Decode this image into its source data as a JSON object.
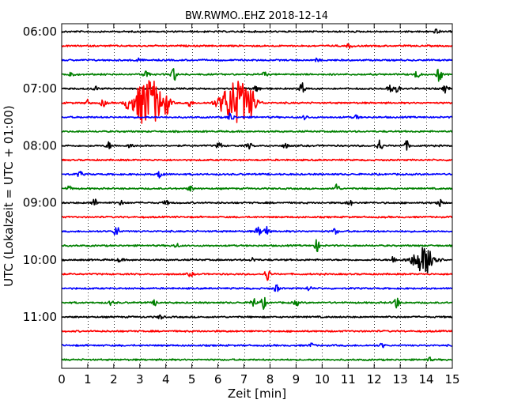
{
  "chart_data": {
    "type": "line",
    "title": "BW.RWMO..EHZ 2018-12-14",
    "xlabel": "Zeit  [min]",
    "ylabel": "UTC (Lokalzeit = UTC + 01:00)",
    "xlim": [
      0,
      15
    ],
    "x_ticks": [
      0,
      1,
      2,
      3,
      4,
      5,
      6,
      7,
      8,
      9,
      10,
      11,
      12,
      13,
      14,
      15
    ],
    "x_tick_labels": [
      "0",
      "1",
      "2",
      "3",
      "4",
      "5",
      "6",
      "7",
      "8",
      "9",
      "10",
      "11",
      "12",
      "13",
      "14",
      "15"
    ],
    "y_tick_labels": [
      "06:00",
      "07:00",
      "08:00",
      "09:00",
      "10:00",
      "11:00"
    ],
    "vertical_grid": true,
    "grid_style": "dotted",
    "trace_colors": [
      "#000000",
      "#ff0000",
      "#0000ff",
      "#008000"
    ],
    "traces": [
      {
        "start": "06:00",
        "events": [
          {
            "t": 14.4,
            "a": 0.35
          }
        ]
      },
      {
        "start": "06:15",
        "events": [
          {
            "t": 11.05,
            "a": 0.3
          }
        ]
      },
      {
        "start": "06:30",
        "events": [
          {
            "t": 2.9,
            "a": 0.3
          },
          {
            "t": 9.8,
            "a": 0.2
          }
        ]
      },
      {
        "start": "06:45",
        "events": [
          {
            "t": 0.35,
            "a": 0.5
          },
          {
            "t": 3.25,
            "a": 0.6
          },
          {
            "t": 4.3,
            "a": 1.0
          },
          {
            "t": 7.8,
            "a": 0.3
          },
          {
            "t": 13.65,
            "a": 0.6
          },
          {
            "t": 14.5,
            "a": 1.0
          }
        ]
      },
      {
        "start": "07:00",
        "events": [
          {
            "t": 1.3,
            "a": 0.3
          },
          {
            "t": 7.5,
            "a": 0.6
          },
          {
            "t": 9.25,
            "a": 1.0
          },
          {
            "t": 12.6,
            "a": 0.8
          },
          {
            "t": 12.9,
            "a": 0.5
          },
          {
            "t": 14.75,
            "a": 0.6
          }
        ]
      },
      {
        "start": "07:15",
        "events": [
          {
            "t": 1.0,
            "a": 0.4
          },
          {
            "t": 1.6,
            "a": 0.5
          },
          {
            "t": 2.5,
            "a": 0.6
          },
          {
            "t": 3.15,
            "a": 2.4
          },
          {
            "t": 3.55,
            "a": 2.0
          },
          {
            "t": 4.05,
            "a": 1.2
          },
          {
            "t": 4.9,
            "a": 0.6
          },
          {
            "t": 6.45,
            "a": 2.0
          },
          {
            "t": 6.95,
            "a": 2.3
          },
          {
            "t": 7.35,
            "a": 1.0
          }
        ]
      },
      {
        "start": "07:30",
        "events": [
          {
            "t": 6.5,
            "a": 0.7
          },
          {
            "t": 9.35,
            "a": 0.3
          },
          {
            "t": 11.3,
            "a": 0.3
          }
        ]
      },
      {
        "start": "07:45",
        "events": []
      },
      {
        "start": "08:00",
        "events": [
          {
            "t": 1.8,
            "a": 0.5
          },
          {
            "t": 2.65,
            "a": 0.4
          },
          {
            "t": 6.05,
            "a": 0.5
          },
          {
            "t": 7.2,
            "a": 0.4
          },
          {
            "t": 8.6,
            "a": 0.3
          },
          {
            "t": 12.2,
            "a": 0.9
          },
          {
            "t": 13.25,
            "a": 0.6
          }
        ]
      },
      {
        "start": "08:15",
        "events": []
      },
      {
        "start": "08:30",
        "events": [
          {
            "t": 0.7,
            "a": 0.4
          },
          {
            "t": 3.8,
            "a": 0.6
          }
        ]
      },
      {
        "start": "08:45",
        "events": [
          {
            "t": 0.3,
            "a": 0.3
          },
          {
            "t": 4.95,
            "a": 0.4
          },
          {
            "t": 10.55,
            "a": 0.8
          }
        ]
      },
      {
        "start": "09:00",
        "events": [
          {
            "t": 1.25,
            "a": 0.6
          },
          {
            "t": 2.3,
            "a": 0.3
          },
          {
            "t": 4.0,
            "a": 0.3
          },
          {
            "t": 11.05,
            "a": 0.4
          },
          {
            "t": 14.5,
            "a": 0.5
          }
        ]
      },
      {
        "start": "09:15",
        "events": []
      },
      {
        "start": "09:30",
        "events": [
          {
            "t": 2.1,
            "a": 0.8
          },
          {
            "t": 7.55,
            "a": 0.6
          },
          {
            "t": 7.85,
            "a": 0.7
          },
          {
            "t": 10.5,
            "a": 0.4
          }
        ]
      },
      {
        "start": "09:45",
        "events": [
          {
            "t": 4.4,
            "a": 0.3
          },
          {
            "t": 9.8,
            "a": 0.8
          }
        ]
      },
      {
        "start": "10:00",
        "events": [
          {
            "t": 2.25,
            "a": 0.3
          },
          {
            "t": 7.35,
            "a": 0.3
          },
          {
            "t": 12.75,
            "a": 0.5
          },
          {
            "t": 13.9,
            "a": 1.8
          },
          {
            "t": 14.15,
            "a": 0.6
          }
        ]
      },
      {
        "start": "10:15",
        "events": [
          {
            "t": 4.95,
            "a": 0.3
          },
          {
            "t": 7.9,
            "a": 0.9
          }
        ]
      },
      {
        "start": "10:30",
        "events": [
          {
            "t": 8.25,
            "a": 0.5
          },
          {
            "t": 9.5,
            "a": 0.3
          }
        ]
      },
      {
        "start": "10:45",
        "events": [
          {
            "t": 1.9,
            "a": 0.3
          },
          {
            "t": 3.6,
            "a": 0.4
          },
          {
            "t": 7.35,
            "a": 0.7
          },
          {
            "t": 7.75,
            "a": 0.8
          },
          {
            "t": 9.0,
            "a": 0.4
          },
          {
            "t": 12.85,
            "a": 0.9
          }
        ]
      },
      {
        "start": "11:00",
        "events": [
          {
            "t": 3.8,
            "a": 0.3
          }
        ]
      },
      {
        "start": "11:15",
        "events": []
      },
      {
        "start": "11:30",
        "events": [
          {
            "t": 9.6,
            "a": 0.3
          },
          {
            "t": 12.3,
            "a": 0.3
          }
        ]
      },
      {
        "start": "11:45",
        "events": [
          {
            "t": 14.1,
            "a": 0.3
          }
        ]
      }
    ]
  }
}
